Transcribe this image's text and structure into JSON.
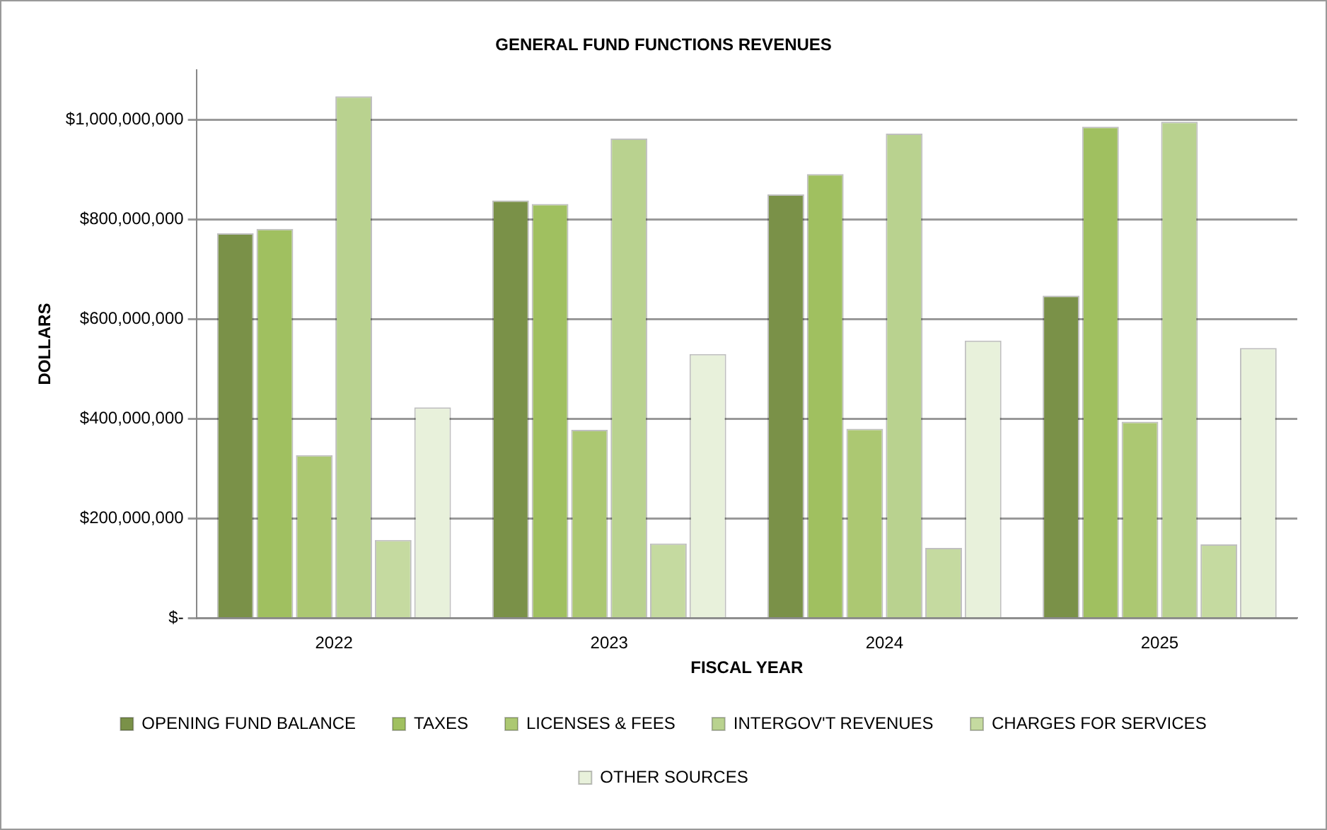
{
  "chart_data": {
    "type": "bar",
    "title": "GENERAL FUND FUNCTIONS REVENUES",
    "xlabel": "FISCAL YEAR",
    "ylabel": "DOLLARS",
    "categories": [
      "2022",
      "2023",
      "2024",
      "2025"
    ],
    "series": [
      {
        "name": "OPENING FUND BALANCE",
        "color": "#7a9148",
        "values": [
          772000000,
          838000000,
          850000000,
          647000000
        ]
      },
      {
        "name": "TAXES",
        "color": "#a0c060",
        "values": [
          781000000,
          831000000,
          891000000,
          986000000
        ]
      },
      {
        "name": "LICENSES & FEES",
        "color": "#acc872",
        "values": [
          327000000,
          378000000,
          380000000,
          394000000
        ]
      },
      {
        "name": "INTERGOV'T REVENUES",
        "color": "#b9d28f",
        "values": [
          1047000000,
          962000000,
          972000000,
          996000000
        ]
      },
      {
        "name": "CHARGES FOR SERVICES",
        "color": "#c5daa0",
        "values": [
          157000000,
          150000000,
          141000000,
          148000000
        ]
      },
      {
        "name": "OTHER SOURCES",
        "color": "#e8f1db",
        "values": [
          423000000,
          530000000,
          557000000,
          542000000
        ]
      }
    ],
    "ylim": [
      0,
      1100000000
    ],
    "yticks": [
      {
        "value": 0,
        "label": "$-"
      },
      {
        "value": 200000000,
        "label": "$200,000,000"
      },
      {
        "value": 400000000,
        "label": "$400,000,000"
      },
      {
        "value": 600000000,
        "label": "$600,000,000"
      },
      {
        "value": 800000000,
        "label": "$800,000,000"
      },
      {
        "value": 1000000000,
        "label": "$1,000,000,000"
      }
    ],
    "grid": "y",
    "legend": "bottom"
  }
}
